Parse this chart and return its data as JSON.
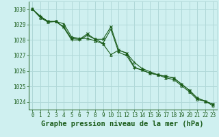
{
  "xlabel": "Graphe pression niveau de la mer (hPa)",
  "ylim": [
    1023.5,
    1030.5
  ],
  "xlim": [
    -0.5,
    23.5
  ],
  "yticks": [
    1024,
    1025,
    1026,
    1027,
    1028,
    1029,
    1030
  ],
  "xticks": [
    0,
    1,
    2,
    3,
    4,
    5,
    6,
    7,
    8,
    9,
    10,
    11,
    12,
    13,
    14,
    15,
    16,
    17,
    18,
    19,
    20,
    21,
    22,
    23
  ],
  "bg_color": "#cff0f0",
  "grid_color": "#b0d8d8",
  "line_color": "#1a5c1a",
  "series": [
    [
      1030.0,
      1029.55,
      1029.2,
      1029.2,
      1028.8,
      1028.0,
      1028.0,
      1028.3,
      1028.05,
      1027.8,
      1028.7,
      1027.2,
      1027.0,
      1026.2,
      1026.05,
      1025.85,
      1025.75,
      1025.65,
      1025.55,
      1025.15,
      1024.75,
      1024.25,
      1024.05,
      1023.85
    ],
    [
      1030.0,
      1029.45,
      1029.15,
      1029.2,
      1029.05,
      1028.2,
      1028.1,
      1028.1,
      1027.95,
      1027.75,
      1027.05,
      1027.35,
      1027.15,
      1026.55,
      1026.15,
      1025.95,
      1025.75,
      1025.55,
      1025.45,
      1025.05,
      1024.65,
      1024.15,
      1024.05,
      1023.75
    ],
    [
      1030.0,
      1029.5,
      1029.2,
      1029.2,
      1028.85,
      1028.1,
      1028.05,
      1028.4,
      1028.05,
      1028.05,
      1028.85,
      1027.35,
      1027.15,
      1026.25,
      1026.05,
      1025.85,
      1025.75,
      1025.65,
      1025.55,
      1025.15,
      1024.75,
      1024.25,
      1024.05,
      1023.85
    ]
  ],
  "markers": [
    "+",
    "^",
    "x"
  ],
  "tick_fontsize": 5.5,
  "xlabel_fontsize": 7.5
}
